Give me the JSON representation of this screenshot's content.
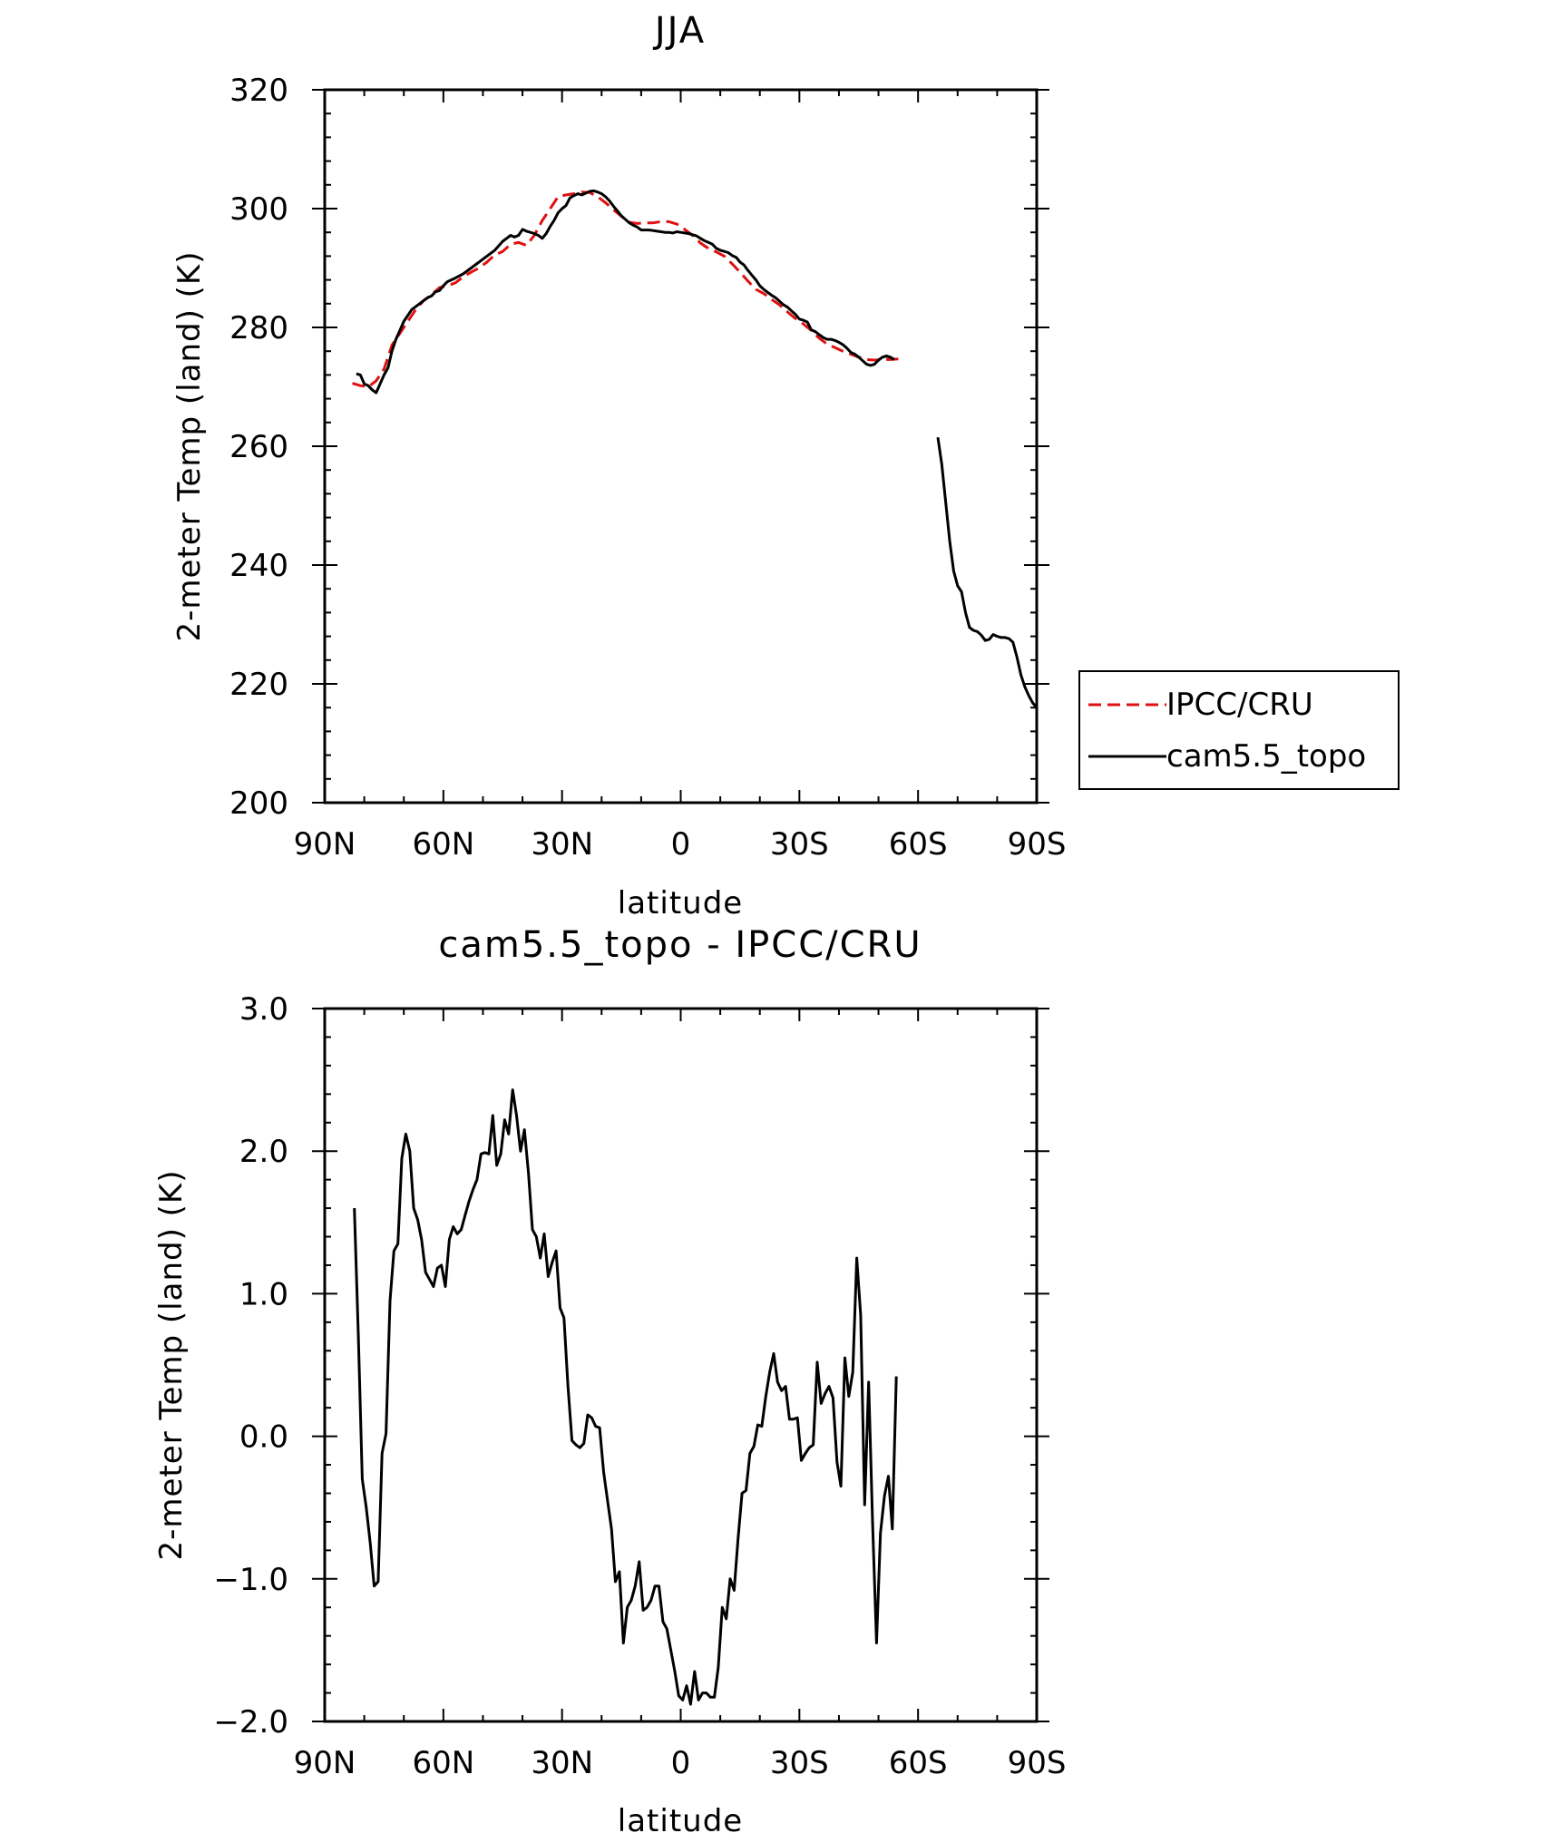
{
  "chart_data": [
    {
      "type": "line",
      "title": "JJA",
      "xlabel": "latitude",
      "ylabel": "2-meter Temp (land) (K)",
      "xlim": [
        90,
        -90
      ],
      "ylim": [
        200,
        320
      ],
      "xtick_values": [
        90,
        60,
        30,
        0,
        -30,
        -60,
        -90
      ],
      "xtick_labels": [
        "90N",
        "60N",
        "30N",
        "0",
        "30S",
        "60S",
        "90S"
      ],
      "ytick_values": [
        200,
        220,
        240,
        260,
        280,
        300,
        320
      ],
      "ytick_labels": [
        "200",
        "220",
        "240",
        "260",
        "280",
        "300",
        "320"
      ],
      "legend_position": "right",
      "series": [
        {
          "name": "IPCC/CRU",
          "color": "#e01010",
          "style": "dashed",
          "x": [
            83,
            81,
            79,
            77,
            75,
            73,
            71,
            69,
            67,
            65,
            63,
            61,
            59,
            57,
            55,
            53,
            51,
            49,
            47,
            45,
            43,
            41,
            39,
            37,
            35,
            33,
            31,
            29,
            27,
            25,
            23,
            21,
            19,
            17,
            15,
            13,
            11,
            9,
            7,
            5,
            3,
            1,
            -1,
            -3,
            -5,
            -7,
            -9,
            -11,
            -13,
            -15,
            -17,
            -19,
            -21,
            -23,
            -25,
            -27,
            -29,
            -31,
            -33,
            -35,
            -37,
            -39,
            -41,
            -43,
            -45,
            -47,
            -49,
            -51,
            -53,
            -55
          ],
          "y": [
            270.6,
            270.2,
            270.0,
            271.0,
            273.0,
            277.0,
            279.0,
            281.0,
            283.0,
            284.5,
            285.5,
            286.7,
            287.0,
            287.5,
            288.5,
            289.3,
            290.0,
            291.0,
            292.2,
            292.8,
            294.0,
            294.3,
            293.8,
            295.5,
            298.0,
            300.0,
            302.0,
            302.3,
            302.5,
            302.8,
            302.7,
            302.0,
            301.0,
            299.8,
            298.7,
            297.7,
            297.5,
            297.6,
            297.6,
            297.8,
            297.8,
            297.4,
            296.5,
            295.5,
            294.2,
            293.3,
            292.7,
            292.0,
            290.7,
            289.3,
            287.8,
            286.4,
            285.7,
            284.7,
            283.8,
            282.6,
            281.5,
            280.6,
            279.5,
            278.2,
            277.2,
            276.6,
            276.0,
            275.5,
            275.0,
            274.6,
            274.5,
            274.6,
            274.6,
            274.7
          ]
        },
        {
          "name": "cam5.5_topo",
          "color": "#000000",
          "style": "solid",
          "x": [
            82,
            81,
            80,
            79,
            78,
            77,
            76,
            75,
            74,
            73,
            72,
            71,
            70,
            69,
            68,
            67,
            66,
            65,
            64,
            63,
            62,
            61,
            60,
            59,
            57,
            55,
            53,
            51,
            49,
            47,
            45,
            44,
            43,
            42,
            41,
            40,
            39,
            38,
            37,
            36,
            35,
            34,
            33,
            32,
            31,
            30,
            29,
            28,
            27,
            26,
            25,
            24,
            23,
            22,
            21,
            20,
            19,
            18,
            17,
            16,
            15,
            14,
            13,
            12,
            11,
            10,
            9,
            8,
            7,
            6,
            5,
            4,
            3,
            2,
            1,
            0,
            -1,
            -2,
            -3,
            -4,
            -5,
            -6,
            -7,
            -8,
            -9,
            -10,
            -11,
            -12,
            -13,
            -14,
            -15,
            -16,
            -17,
            -18,
            -19,
            -20,
            -21,
            -22,
            -23,
            -24,
            -25,
            -26,
            -27,
            -28,
            -29,
            -30,
            -31,
            -32,
            -33,
            -34,
            -35,
            -36,
            -37,
            -38,
            -39,
            -40,
            -41,
            -42,
            -43,
            -44,
            -45,
            -46,
            -47,
            -48,
            -49,
            -50,
            -51,
            -52,
            -53,
            -54
          ],
          "y": [
            272.2,
            272.0,
            270.5,
            270.2,
            269.5,
            269.0,
            270.5,
            272.0,
            273.2,
            276.0,
            278.0,
            279.5,
            281.0,
            282.0,
            283.0,
            283.5,
            284.0,
            284.5,
            285.0,
            285.3,
            286.0,
            286.2,
            287.0,
            287.7,
            288.3,
            289.0,
            290.0,
            291.0,
            292.0,
            293.0,
            294.5,
            295.0,
            295.5,
            295.2,
            295.5,
            296.5,
            296.2,
            296.0,
            295.8,
            295.5,
            295.0,
            295.8,
            297.0,
            298.0,
            299.3,
            300.0,
            300.5,
            301.8,
            302.2,
            302.5,
            302.3,
            302.6,
            302.9,
            303.0,
            302.8,
            302.5,
            302.0,
            301.3,
            300.4,
            299.6,
            298.8,
            298.2,
            297.6,
            297.2,
            296.9,
            296.4,
            296.4,
            296.4,
            296.3,
            296.2,
            296.1,
            296.0,
            296.0,
            295.9,
            296.1,
            296.0,
            295.9,
            295.8,
            295.6,
            295.4,
            295.0,
            294.6,
            294.3,
            294.0,
            293.3,
            293.0,
            292.8,
            292.6,
            292.1,
            291.8,
            291.0,
            290.5,
            289.6,
            288.8,
            288.0,
            287.0,
            286.4,
            285.9,
            285.4,
            285.0,
            284.4,
            283.8,
            283.4,
            282.8,
            282.2,
            281.4,
            281.2,
            280.9,
            279.6,
            279.3,
            278.8,
            278.3,
            278.0,
            278.0,
            277.8,
            277.5,
            277.1,
            276.5,
            275.8,
            275.5,
            275.0,
            274.4,
            273.8,
            273.6,
            273.8,
            274.5,
            275.0,
            275.2,
            275.0,
            274.6
          ]
        },
        {
          "name": "",
          "color": "#000000",
          "style": "solid",
          "x": [
            -65,
            -66,
            -67,
            -68,
            -69,
            -70,
            -71,
            -72,
            -73,
            -74,
            -75,
            -76,
            -77,
            -78,
            -79,
            -80,
            -81,
            -82,
            -83,
            -84,
            -85,
            -86,
            -87,
            -88,
            -89,
            -90
          ],
          "y": [
            261.5,
            257.0,
            250.5,
            244.0,
            239.0,
            236.5,
            235.5,
            232.0,
            229.5,
            229.0,
            228.8,
            228.2,
            227.3,
            227.5,
            228.3,
            228.0,
            227.8,
            227.8,
            227.6,
            227.0,
            224.5,
            221.5,
            219.5,
            218.0,
            216.8,
            216.0
          ]
        }
      ]
    },
    {
      "type": "line",
      "title": "cam5.5_topo - IPCC/CRU",
      "xlabel": "latitude",
      "ylabel": "2-meter Temp (land) (K)",
      "xlim": [
        90,
        -90
      ],
      "ylim": [
        -2.0,
        3.0
      ],
      "xtick_values": [
        90,
        60,
        30,
        0,
        -30,
        -60,
        -90
      ],
      "xtick_labels": [
        "90N",
        "60N",
        "30N",
        "0",
        "30S",
        "60S",
        "90S"
      ],
      "ytick_values": [
        -2.0,
        -1.0,
        0.0,
        1.0,
        2.0,
        3.0
      ],
      "ytick_labels": [
        "−2.0",
        "−1.0",
        "0.0",
        "1.0",
        "2.0",
        "3.0"
      ],
      "series": [
        {
          "name": "",
          "color": "#000000",
          "style": "solid",
          "x": [
            82.5,
            81.5,
            80.5,
            79.5,
            78.5,
            77.5,
            76.5,
            75.5,
            74.5,
            73.5,
            72.5,
            71.5,
            70.5,
            69.5,
            68.5,
            67.5,
            66.5,
            65.5,
            64.5,
            63.5,
            62.5,
            61.5,
            60.5,
            59.5,
            58.5,
            57.5,
            56.5,
            55.5,
            54.5,
            53.5,
            52.5,
            51.5,
            50.5,
            49.5,
            48.5,
            47.5,
            46.5,
            45.5,
            44.5,
            43.5,
            42.5,
            41.5,
            40.5,
            39.5,
            38.5,
            37.5,
            36.5,
            35.5,
            34.5,
            33.5,
            32.5,
            31.5,
            30.5,
            29.5,
            28.5,
            27.5,
            26.5,
            25.5,
            24.5,
            23.5,
            22.5,
            21.5,
            20.5,
            19.5,
            18.5,
            17.5,
            16.5,
            15.5,
            14.5,
            13.5,
            12.5,
            11.5,
            10.5,
            9.5,
            8.5,
            7.5,
            6.5,
            5.5,
            4.5,
            3.5,
            2.5,
            1.5,
            0.5,
            -0.5,
            -1.5,
            -2.5,
            -3.5,
            -4.5,
            -5.5,
            -6.5,
            -7.5,
            -8.5,
            -9.5,
            -10.5,
            -11.5,
            -12.5,
            -13.5,
            -14.5,
            -15.5,
            -16.5,
            -17.5,
            -18.5,
            -19.5,
            -20.5,
            -21.5,
            -22.5,
            -23.5,
            -24.5,
            -25.5,
            -26.5,
            -27.5,
            -28.5,
            -29.5,
            -30.5,
            -31.5,
            -32.5,
            -33.5,
            -34.5,
            -35.5,
            -36.5,
            -37.5,
            -38.5,
            -39.5,
            -40.5,
            -41.5,
            -42.5,
            -43.5,
            -44.5,
            -45.5,
            -46.5,
            -47.5,
            -48.5,
            -49.5,
            -50.5,
            -51.5,
            -52.5,
            -53.5,
            -54.5
          ],
          "y": [
            1.6,
            0.7,
            -0.3,
            -0.5,
            -0.75,
            -1.05,
            -1.02,
            -0.12,
            0.02,
            0.95,
            1.3,
            1.35,
            1.95,
            2.12,
            2.0,
            1.6,
            1.52,
            1.38,
            1.15,
            1.1,
            1.05,
            1.18,
            1.2,
            1.05,
            1.38,
            1.47,
            1.42,
            1.45,
            1.55,
            1.65,
            1.73,
            1.8,
            1.98,
            1.99,
            1.98,
            2.25,
            1.9,
            1.98,
            2.22,
            2.12,
            2.43,
            2.25,
            2.0,
            2.15,
            1.85,
            1.45,
            1.4,
            1.25,
            1.42,
            1.12,
            1.22,
            1.3,
            0.9,
            0.83,
            0.35,
            -0.03,
            -0.06,
            -0.08,
            -0.05,
            0.15,
            0.13,
            0.07,
            0.06,
            -0.25,
            -0.45,
            -0.65,
            -1.02,
            -0.95,
            -1.45,
            -1.2,
            -1.15,
            -1.05,
            -0.88,
            -1.22,
            -1.2,
            -1.15,
            -1.05,
            -1.05,
            -1.3,
            -1.35,
            -1.5,
            -1.65,
            -1.82,
            -1.85,
            -1.75,
            -1.88,
            -1.65,
            -1.85,
            -1.8,
            -1.8,
            -1.83,
            -1.83,
            -1.62,
            -1.2,
            -1.28,
            -1.0,
            -1.08,
            -0.72,
            -0.4,
            -0.38,
            -0.12,
            -0.07,
            0.08,
            0.07,
            0.28,
            0.45,
            0.58,
            0.38,
            0.32,
            0.35,
            0.12,
            0.12,
            0.13,
            -0.17,
            -0.12,
            -0.08,
            -0.06,
            0.52,
            0.23,
            0.3,
            0.35,
            0.27,
            -0.18,
            -0.35,
            0.55,
            0.28,
            0.45,
            1.25,
            0.85,
            -0.48,
            0.38,
            -0.6,
            -1.45,
            -0.68,
            -0.42,
            -0.28,
            -0.65,
            0.42
          ]
        }
      ]
    }
  ],
  "legend": {
    "items": [
      {
        "label": "IPCC/CRU",
        "color": "#e01010",
        "style": "dashed"
      },
      {
        "label": "cam5.5_topo",
        "color": "#000000",
        "style": "solid"
      }
    ]
  }
}
